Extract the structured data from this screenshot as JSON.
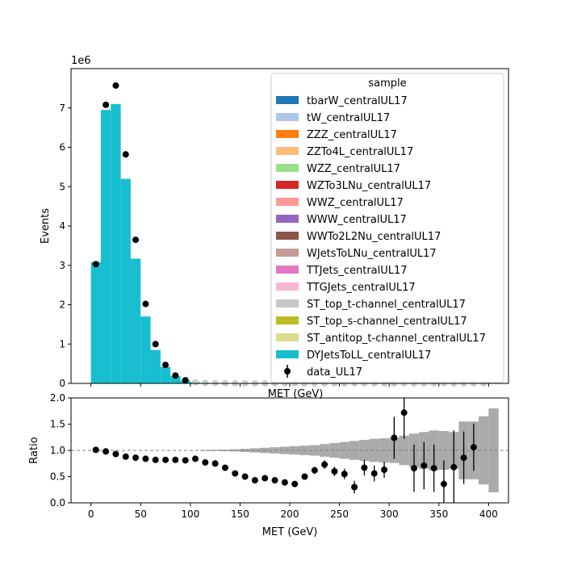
{
  "chart_data": [
    {
      "type": "bar",
      "panel": "main",
      "stacked": true,
      "xlabel": "MET (GeV)",
      "ylabel": "Events",
      "offset_text": "1e6",
      "xlim": [
        -20,
        420
      ],
      "ylim": [
        0,
        8.0
      ],
      "y_scale_factor": 1000000,
      "yticks": [
        0,
        1,
        2,
        3,
        4,
        5,
        6,
        7
      ],
      "bin_edges": [
        0,
        10,
        20,
        30,
        40,
        50,
        60,
        70,
        80,
        90,
        100,
        110,
        120,
        130,
        140,
        150,
        160,
        170,
        180,
        190,
        200,
        210,
        220,
        230,
        240,
        250,
        260,
        270,
        280,
        290,
        300,
        310,
        320,
        330,
        340,
        350,
        360,
        370,
        380,
        390,
        400
      ],
      "legend": {
        "title": "sample",
        "placement": "top-right"
      },
      "series": [
        {
          "name": "tbarW_centralUL17",
          "color": "#1f77b4"
        },
        {
          "name": "tW_centralUL17",
          "color": "#aec7e8"
        },
        {
          "name": "ZZZ_centralUL17",
          "color": "#ff7f0e"
        },
        {
          "name": "ZZTo4L_centralUL17",
          "color": "#ffbb78"
        },
        {
          "name": "WZZ_centralUL17",
          "color": "#98df8a"
        },
        {
          "name": "WZTo3LNu_centralUL17",
          "color": "#d62728"
        },
        {
          "name": "WWZ_centralUL17",
          "color": "#ff9896"
        },
        {
          "name": "WWW_centralUL17",
          "color": "#9467bd"
        },
        {
          "name": "WWTo2L2Nu_centralUL17",
          "color": "#8c564b"
        },
        {
          "name": "WJetsToLNu_centralUL17",
          "color": "#c49c94"
        },
        {
          "name": "TTJets_centralUL17",
          "color": "#e377c2"
        },
        {
          "name": "TTGJets_centralUL17",
          "color": "#f7b6d2"
        },
        {
          "name": "ST_top_t-channel_centralUL17",
          "color": "#c7c7c7"
        },
        {
          "name": "ST_top_s-channel_centralUL17",
          "color": "#bcbd22"
        },
        {
          "name": "ST_antitop_t-channel_centralUL17",
          "color": "#dbdb8d"
        },
        {
          "name": "DYJetsToLL_centralUL17",
          "color": "#17becf",
          "values": [
            3.08,
            6.95,
            7.1,
            5.2,
            3.17,
            1.7,
            0.85,
            0.42,
            0.19,
            0.075,
            0.03,
            0.013,
            0.008,
            0.005,
            0.003,
            0.002,
            0.0015,
            0.001,
            0.0008,
            0.0006,
            0.0005,
            0.0004,
            0.0003,
            0.0002,
            0.0002,
            0.0001,
            0.0001,
            0.0001,
            0.0001,
            0.0001,
            0.0001,
            0.0001,
            0.0001,
            0.0001,
            0.0001,
            0.0001,
            0.0001,
            0.0001,
            0.0001,
            0.0001
          ]
        }
      ],
      "data": {
        "name": "data_UL17",
        "color": "#000000",
        "x": [
          5,
          15,
          25,
          35,
          45,
          55,
          65,
          75,
          85,
          95,
          105,
          115,
          125,
          135,
          145,
          155,
          165,
          175,
          185,
          195,
          205,
          215,
          225,
          235,
          245,
          255,
          265,
          275,
          285,
          295,
          305,
          315,
          325,
          335,
          345,
          355,
          365,
          375,
          385,
          395
        ],
        "y": [
          3.03,
          7.08,
          7.57,
          5.82,
          3.65,
          2.02,
          1.0,
          0.47,
          0.2,
          0.08,
          0.03,
          0.012,
          0.006,
          0.003,
          0.002,
          0.001,
          0.0008,
          0.0005,
          0.0004,
          0.0003,
          0.0002,
          0.0002,
          0.0001,
          0.0001,
          0.0001,
          0.0001,
          0.0001,
          0.0001,
          0.0001,
          0.0001,
          0.0001,
          0.0001,
          0.0001,
          0.0001,
          0.0001,
          0.0001,
          0.0001,
          0.0001,
          0.0001,
          0.0001
        ]
      }
    },
    {
      "type": "scatter",
      "panel": "ratio",
      "xlabel": "MET (GeV)",
      "ylabel": "Ratio",
      "xlim": [
        -20,
        420
      ],
      "ylim": [
        0.0,
        2.0
      ],
      "xticks": [
        0,
        50,
        100,
        150,
        200,
        250,
        300,
        350,
        400
      ],
      "yticks": [
        0.0,
        0.5,
        1.0,
        1.5,
        2.0
      ],
      "reference_line": 1.0,
      "x": [
        5,
        15,
        25,
        35,
        45,
        55,
        65,
        75,
        85,
        95,
        105,
        115,
        125,
        135,
        145,
        155,
        165,
        175,
        185,
        195,
        205,
        215,
        225,
        235,
        245,
        255,
        265,
        275,
        285,
        295,
        305,
        315,
        325,
        335,
        345,
        355,
        365,
        375,
        385
      ],
      "y": [
        1.01,
        0.98,
        0.93,
        0.88,
        0.86,
        0.84,
        0.82,
        0.82,
        0.82,
        0.81,
        0.84,
        0.77,
        0.75,
        0.67,
        0.56,
        0.5,
        0.43,
        0.47,
        0.43,
        0.39,
        0.36,
        0.5,
        0.62,
        0.73,
        0.6,
        0.55,
        0.3,
        0.67,
        0.56,
        0.63,
        1.24,
        1.72,
        0.66,
        0.71,
        0.66,
        0.36,
        0.68,
        0.86,
        1.06
      ],
      "yerr": [
        0.0,
        0.0,
        0.0,
        0.0,
        0.0,
        0.0,
        0.0,
        0.0,
        0.0,
        0.0,
        0.01,
        0.01,
        0.01,
        0.02,
        0.02,
        0.03,
        0.03,
        0.03,
        0.04,
        0.04,
        0.05,
        0.06,
        0.07,
        0.08,
        0.09,
        0.1,
        0.12,
        0.15,
        0.15,
        0.15,
        0.4,
        0.5,
        0.45,
        0.45,
        0.45,
        0.45,
        0.7,
        0.5,
        0.45
      ],
      "mc_uncertainty": {
        "color": "#aaaaaa",
        "x_edges": [
          110,
          120,
          130,
          140,
          150,
          160,
          170,
          180,
          190,
          200,
          210,
          220,
          230,
          240,
          250,
          260,
          270,
          280,
          290,
          300,
          310,
          320,
          330,
          340,
          350,
          360,
          370,
          380,
          390,
          400
        ],
        "half_width": [
          0.01,
          0.012,
          0.015,
          0.02,
          0.03,
          0.04,
          0.05,
          0.06,
          0.07,
          0.08,
          0.09,
          0.1,
          0.12,
          0.14,
          0.16,
          0.18,
          0.2,
          0.22,
          0.23,
          0.24,
          0.28,
          0.32,
          0.35,
          0.38,
          0.37,
          0.35,
          0.55,
          0.55,
          0.65,
          0.8
        ]
      }
    }
  ]
}
